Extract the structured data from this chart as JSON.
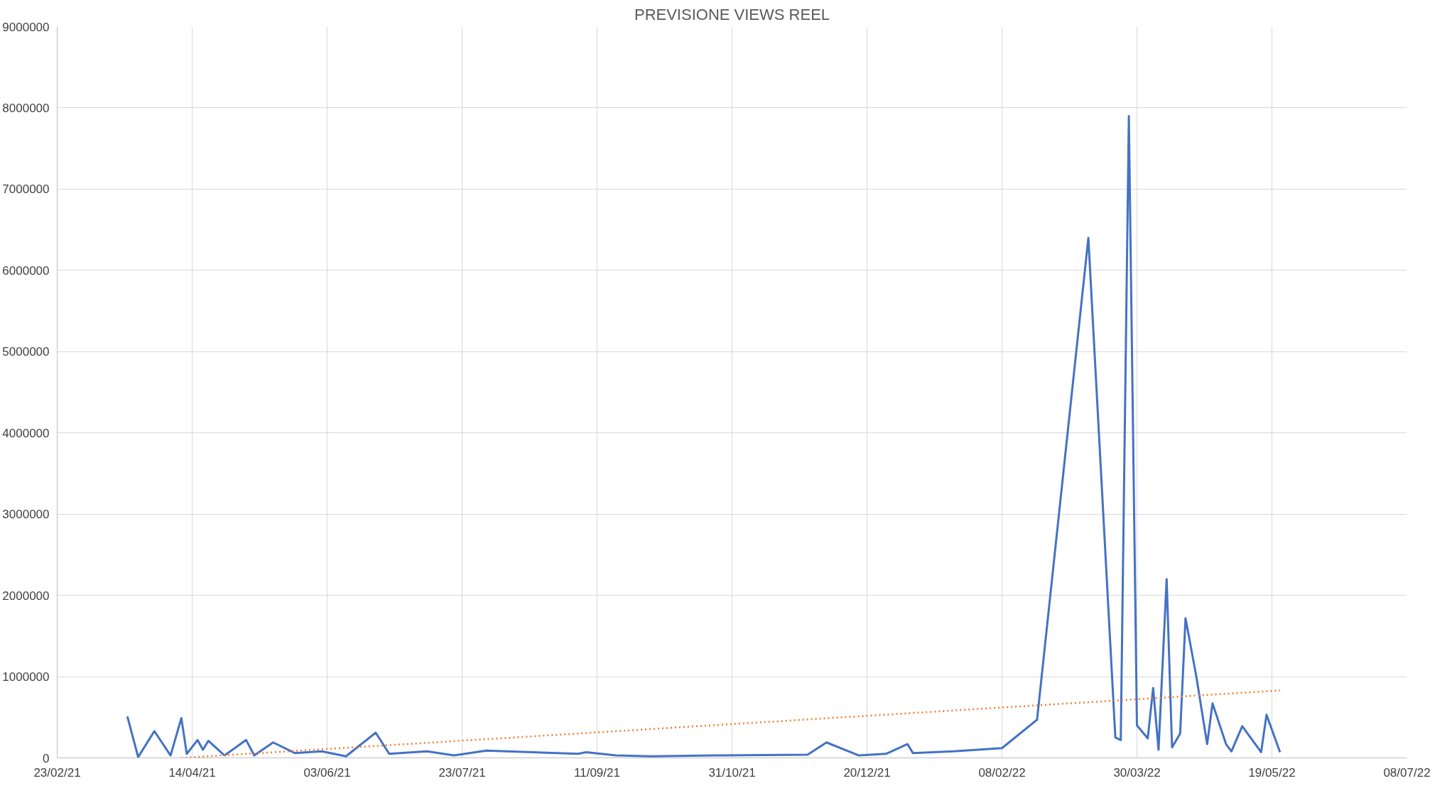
{
  "chart_data": {
    "type": "line",
    "title": "PREVISIONE VIEWS REEL",
    "xlim": [
      "2021-02-23",
      "2022-07-08"
    ],
    "xticks": [
      {
        "value": "2021-02-23",
        "label": "23/02/21"
      },
      {
        "value": "2021-04-14",
        "label": "14/04/21"
      },
      {
        "value": "2021-06-03",
        "label": "03/06/21"
      },
      {
        "value": "2021-07-23",
        "label": "23/07/21"
      },
      {
        "value": "2021-09-11",
        "label": "11/09/21"
      },
      {
        "value": "2021-10-31",
        "label": "31/10/21"
      },
      {
        "value": "2021-12-20",
        "label": "20/12/21"
      },
      {
        "value": "2022-02-08",
        "label": "08/02/22"
      },
      {
        "value": "2022-03-30",
        "label": "30/03/22"
      },
      {
        "value": "2022-05-19",
        "label": "19/05/22"
      },
      {
        "value": "2022-07-08",
        "label": "08/07/22"
      }
    ],
    "ylim": [
      0,
      9000000
    ],
    "yticks": [
      0,
      1000000,
      2000000,
      3000000,
      4000000,
      5000000,
      6000000,
      7000000,
      8000000,
      9000000
    ],
    "grid": true,
    "series": [
      {
        "color": "#4472c4",
        "line_style": "solid",
        "x": [
          "2021-03-21",
          "2021-03-25",
          "2021-03-31",
          "2021-04-06",
          "2021-04-10",
          "2021-04-12",
          "2021-04-16",
          "2021-04-18",
          "2021-04-20",
          "2021-04-26",
          "2021-05-04",
          "2021-05-07",
          "2021-05-14",
          "2021-05-22",
          "2021-06-01",
          "2021-06-10",
          "2021-06-21",
          "2021-06-26",
          "2021-07-10",
          "2021-07-20",
          "2021-08-01",
          "2021-09-04",
          "2021-09-07",
          "2021-09-18",
          "2021-10-01",
          "2021-10-25",
          "2021-11-28",
          "2021-12-05",
          "2021-12-17",
          "2021-12-27",
          "2022-01-04",
          "2022-01-06",
          "2022-01-21",
          "2022-02-08",
          "2022-02-21",
          "2022-03-12",
          "2022-03-22",
          "2022-03-24",
          "2022-03-27",
          "2022-03-30",
          "2022-04-03",
          "2022-04-05",
          "2022-04-07",
          "2022-04-10",
          "2022-04-12",
          "2022-04-15",
          "2022-04-17",
          "2022-04-21",
          "2022-04-25",
          "2022-04-27",
          "2022-05-02",
          "2022-05-04",
          "2022-05-08",
          "2022-05-15",
          "2022-05-17",
          "2022-05-22"
        ],
        "values": [
          510000,
          10000,
          330000,
          30000,
          490000,
          50000,
          220000,
          100000,
          210000,
          30000,
          220000,
          30000,
          190000,
          60000,
          80000,
          20000,
          310000,
          50000,
          80000,
          30000,
          90000,
          50000,
          70000,
          30000,
          20000,
          30000,
          40000,
          190000,
          30000,
          50000,
          170000,
          60000,
          80000,
          120000,
          470000,
          6400000,
          250000,
          220000,
          7900000,
          400000,
          240000,
          860000,
          100000,
          2200000,
          130000,
          300000,
          1720000,
          1000000,
          170000,
          670000,
          170000,
          80000,
          390000,
          70000,
          530000,
          70000
        ]
      },
      {
        "color": "#ed7d31",
        "line_style": "dotted",
        "x": [
          "2021-04-10",
          "2022-05-22"
        ],
        "values": [
          0,
          830000
        ]
      }
    ]
  }
}
